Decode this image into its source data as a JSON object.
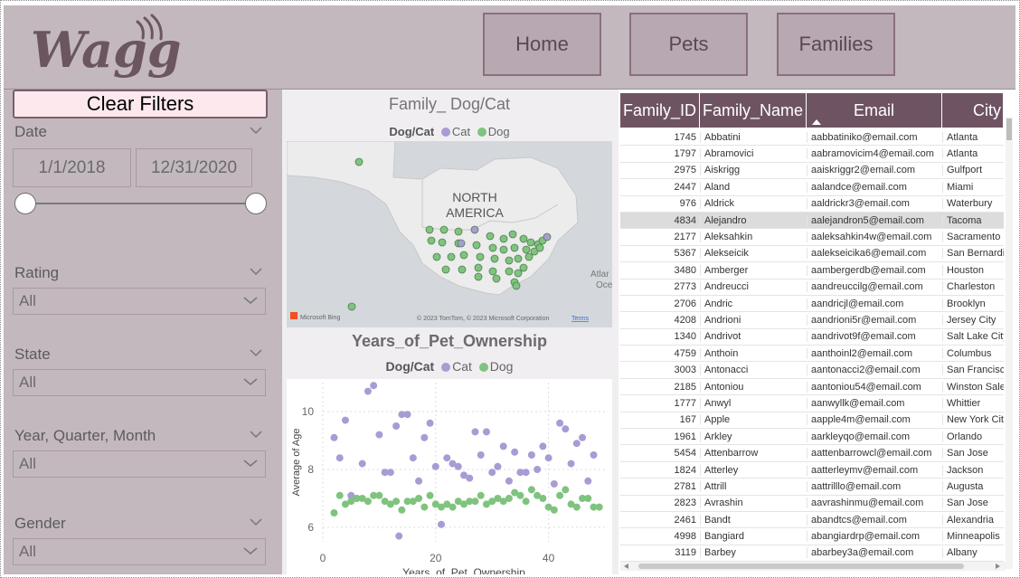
{
  "app": {
    "brand": "Waggle"
  },
  "nav": {
    "home": "Home",
    "pets": "Pets",
    "families": "Families"
  },
  "filters": {
    "clear_label": "Clear Filters",
    "date": {
      "label": "Date",
      "start": "1/1/2018",
      "end": "12/31/2020",
      "range": [
        0,
        1
      ]
    },
    "rating": {
      "label": "Rating",
      "value": "All"
    },
    "state": {
      "label": "State",
      "value": "All"
    },
    "yqm": {
      "label": "Year, Quarter, Month",
      "value": "All"
    },
    "gender": {
      "label": "Gender",
      "value": "All"
    }
  },
  "map": {
    "title": "Family_ Dog/Cat",
    "legend_title": "Dog/Cat",
    "legend_items": [
      "Cat",
      "Dog"
    ],
    "region_label_1": "NORTH",
    "region_label_2": "AMERICA",
    "ocean_label_1": "Atlar",
    "ocean_label_2": "Oce",
    "vendor": "Microsoft Bing",
    "copyright": "© 2023 TomTom, © 2023 Microsoft Corporation",
    "terms": "Terms"
  },
  "scatter": {
    "title": "Years_of_Pet_Ownership",
    "legend_title": "Dog/Cat",
    "legend_items": [
      "Cat",
      "Dog"
    ]
  },
  "colors": {
    "cat": "#a99bd4",
    "dog": "#7fc37f",
    "header": "#6e5463",
    "panel": "#c3b8be"
  },
  "chart_data": {
    "type": "scatter",
    "title": "Years_of_Pet_Ownership",
    "xlabel": "Years_of_Pet_Ownership",
    "ylabel": "Average of Age",
    "xlim": [
      0,
      50
    ],
    "ylim": [
      5.5,
      11
    ],
    "xticks": [
      0,
      20,
      40
    ],
    "yticks": [
      6,
      8,
      10
    ],
    "series": [
      {
        "name": "Cat",
        "color": "#a99bd4",
        "points": [
          [
            2,
            9.1
          ],
          [
            3,
            8.4
          ],
          [
            4,
            9.7
          ],
          [
            5,
            7.1
          ],
          [
            6,
            7.0
          ],
          [
            7,
            8.2
          ],
          [
            8,
            10.7
          ],
          [
            9,
            10.9
          ],
          [
            10,
            9.2
          ],
          [
            11,
            7.9
          ],
          [
            12,
            7.9
          ],
          [
            13,
            9.5
          ],
          [
            14,
            9.9
          ],
          [
            15,
            9.9
          ],
          [
            16,
            8.4
          ],
          [
            17,
            7.6
          ],
          [
            18,
            9.1
          ],
          [
            19,
            9.6
          ],
          [
            20,
            8.1
          ],
          [
            21,
            6.1
          ],
          [
            22,
            8.4
          ],
          [
            23,
            8.2
          ],
          [
            24,
            8.1
          ],
          [
            25,
            7.8
          ],
          [
            26,
            7.7
          ],
          [
            27,
            9.3
          ],
          [
            28,
            8.5
          ],
          [
            29,
            9.3
          ],
          [
            30,
            7.9
          ],
          [
            31,
            8.1
          ],
          [
            32,
            8.8
          ],
          [
            33,
            7.6
          ],
          [
            34,
            8.6
          ],
          [
            35,
            7.9
          ],
          [
            36,
            7.9
          ],
          [
            37,
            8.5
          ],
          [
            38,
            8.0
          ],
          [
            39,
            8.8
          ],
          [
            40,
            8.4
          ],
          [
            41,
            7.5
          ],
          [
            42,
            9.6
          ],
          [
            43,
            9.4
          ],
          [
            44,
            8.2
          ],
          [
            45,
            8.9
          ],
          [
            46,
            9.1
          ],
          [
            47,
            7.6
          ],
          [
            48,
            8.5
          ],
          [
            13.5,
            5.7
          ]
        ]
      },
      {
        "name": "Dog",
        "color": "#7fc37f",
        "points": [
          [
            2,
            6.5
          ],
          [
            3,
            7.1
          ],
          [
            4,
            6.8
          ],
          [
            5,
            6.9
          ],
          [
            6,
            7.0
          ],
          [
            7,
            7.0
          ],
          [
            8,
            6.9
          ],
          [
            9,
            7.1
          ],
          [
            10,
            7.1
          ],
          [
            11,
            6.9
          ],
          [
            12,
            6.8
          ],
          [
            13,
            6.9
          ],
          [
            14,
            6.6
          ],
          [
            15,
            6.9
          ],
          [
            16,
            6.9
          ],
          [
            17,
            7.0
          ],
          [
            18,
            6.7
          ],
          [
            19,
            7.1
          ],
          [
            20,
            6.8
          ],
          [
            21,
            6.7
          ],
          [
            22,
            6.8
          ],
          [
            23,
            6.7
          ],
          [
            24,
            6.9
          ],
          [
            25,
            6.8
          ],
          [
            26,
            6.9
          ],
          [
            27,
            6.9
          ],
          [
            28,
            7.1
          ],
          [
            29,
            6.8
          ],
          [
            30,
            6.9
          ],
          [
            31,
            7.0
          ],
          [
            32,
            6.9
          ],
          [
            33,
            7.0
          ],
          [
            34,
            7.2
          ],
          [
            35,
            7.1
          ],
          [
            36,
            6.9
          ],
          [
            37,
            7.3
          ],
          [
            38,
            7.1
          ],
          [
            39,
            7.0
          ],
          [
            40,
            6.7
          ],
          [
            41,
            6.6
          ],
          [
            42,
            7.1
          ],
          [
            43,
            7.3
          ],
          [
            44,
            6.8
          ],
          [
            45,
            6.7
          ],
          [
            46,
            7.0
          ],
          [
            47,
            7.0
          ],
          [
            48,
            6.7
          ],
          [
            49,
            6.7
          ]
        ]
      }
    ]
  },
  "table": {
    "columns": [
      "Family_ID",
      "Family_Name",
      "Email",
      "City"
    ],
    "sort_column": "Email",
    "rows": [
      [
        "1745",
        "Abbatini",
        "aabbatiniko@email.com",
        "Atlanta"
      ],
      [
        "1797",
        "Abramovici",
        "aabramovicim4@email.com",
        "Atlanta"
      ],
      [
        "2975",
        "Aiskrigg",
        "aaiskriggr2@email.com",
        "Gulfport"
      ],
      [
        "2447",
        "Aland",
        "aalandce@email.com",
        "Miami"
      ],
      [
        "976",
        "Aldrick",
        "aaldrickr3@email.com",
        "Waterbury"
      ],
      [
        "4834",
        "Alejandro",
        "aalejandron5@email.com",
        "Tacoma"
      ],
      [
        "2177",
        "Aleksahkin",
        "aaleksahkin4w@email.com",
        "Sacramento"
      ],
      [
        "5367",
        "Alekseicik",
        "aalekseicika6@email.com",
        "San Bernardin"
      ],
      [
        "3480",
        "Amberger",
        "aambergerdb@email.com",
        "Houston"
      ],
      [
        "2773",
        "Andreucci",
        "aandreuccilg@email.com",
        "Charleston"
      ],
      [
        "2706",
        "Andric",
        "aandricjl@email.com",
        "Brooklyn"
      ],
      [
        "4208",
        "Andrioni",
        "aandrioni5r@email.com",
        "Jersey City"
      ],
      [
        "1340",
        "Andrivot",
        "aandrivot9f@email.com",
        "Salt Lake City"
      ],
      [
        "4759",
        "Anthoin",
        "aanthoinl2@email.com",
        "Columbus"
      ],
      [
        "3003",
        "Antonacci",
        "aantonacci2@email.com",
        "San Francisco"
      ],
      [
        "2185",
        "Antoniou",
        "aantoniou54@email.com",
        "Winston Saler"
      ],
      [
        "1777",
        "Anwyl",
        "aanwyllk@email.com",
        "Whittier"
      ],
      [
        "167",
        "Apple",
        "aapple4m@email.com",
        "New York City"
      ],
      [
        "1961",
        "Arkley",
        "aarkleyqo@email.com",
        "Orlando"
      ],
      [
        "5454",
        "Attenbarrow",
        "aattenbarrowcl@email.com",
        "San Jose"
      ],
      [
        "1824",
        "Atterley",
        "aatterleymv@email.com",
        "Jackson"
      ],
      [
        "2781",
        "Attrill",
        "aattrilllo@email.com",
        "Augusta"
      ],
      [
        "2823",
        "Avrashin",
        "aavrashinmu@email.com",
        "San Jose"
      ],
      [
        "2461",
        "Bandt",
        "abandtcs@email.com",
        "Alexandria"
      ],
      [
        "4998",
        "Bangiard",
        "abangiardrp@email.com",
        "Minneapolis"
      ],
      [
        "3119",
        "Barbey",
        "abarbey3a@email.com",
        "Albany"
      ]
    ],
    "selected_row": 5
  }
}
